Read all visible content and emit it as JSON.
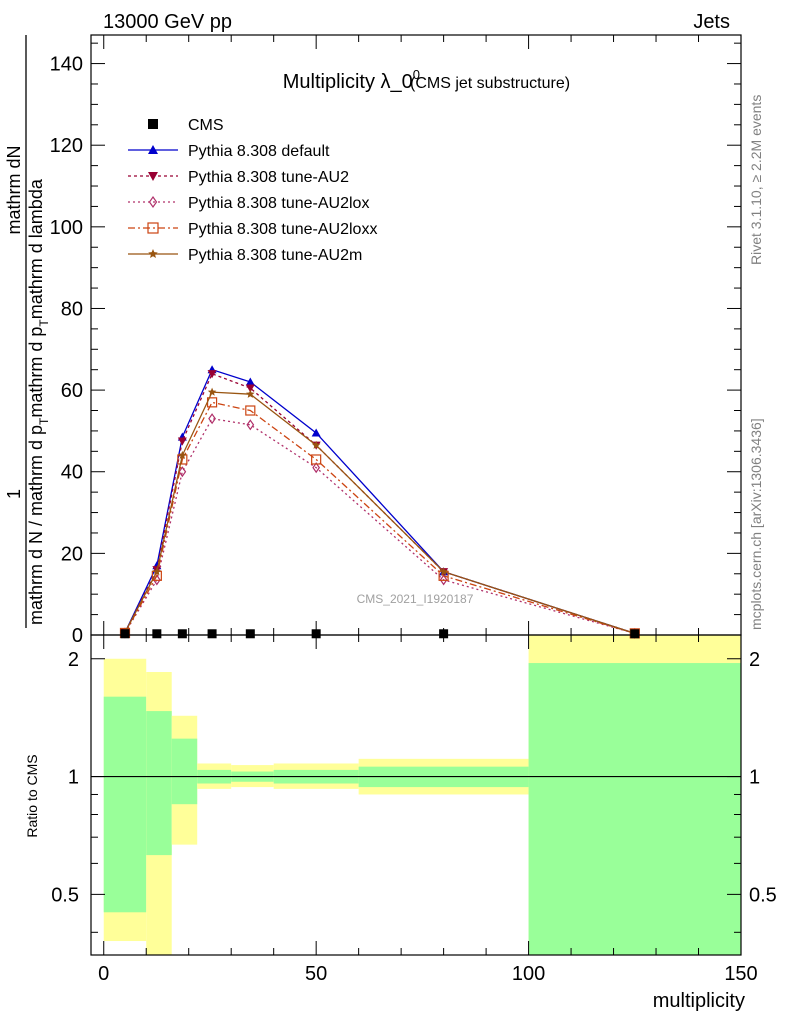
{
  "header": {
    "left": "13000 GeV pp",
    "right": "Jets"
  },
  "side_labels": {
    "rivet": "Rivet 3.1.10, ≥ 2.2M events",
    "mcplots": "mcplots.cern.ch [arXiv:1306.3436]"
  },
  "chart_data": {
    "type": "line",
    "title_main": "Multiplicity λ_0",
    "title_sup": "0",
    "title_paren": "(CMS jet substructure)",
    "watermark": "CMS_2021_I1920187",
    "ylabel_numerator": "mathrm dN",
    "ylabel_numerator_lead": "1",
    "ylabel_denominator": "mathrm d N / mathrm d p",
    "ylabel_denominator_sub": "T",
    "ylabel_denominator_tail": "mathrm d p",
    "ylabel_denominator_tail_sub": "T",
    "ylabel_denominator_end": "mathrm d lambda",
    "ratio_ylabel": "Ratio to CMS",
    "xlabel": "multiplicity",
    "xlim": [
      -3,
      150
    ],
    "ylim": [
      0,
      147
    ],
    "ratio_ylim": [
      0.35,
      2.3
    ],
    "x_ticks": [
      0,
      50,
      100,
      150
    ],
    "y_ticks": [
      0,
      20,
      40,
      60,
      80,
      100,
      120,
      140
    ],
    "ratio_ticks": [
      0.5,
      1,
      2
    ],
    "x": [
      5,
      12.5,
      18.5,
      25.5,
      34.5,
      50,
      80,
      125
    ],
    "cms_values": [
      0.3,
      0.3,
      0.3,
      0.3,
      0.3,
      0.3,
      0.3,
      0.3
    ],
    "series": [
      {
        "name": "CMS",
        "marker": "square",
        "color": "#000000",
        "dash": "none",
        "values": [
          0.3,
          0.3,
          0.3,
          0.3,
          0.3,
          0.3,
          0.3,
          0.3
        ]
      },
      {
        "name": "Pythia 8.308 default",
        "marker": "triangle-up",
        "color": "#0000cc",
        "dash": "none",
        "values": [
          0.6,
          17.0,
          48.5,
          65.0,
          62.0,
          49.5,
          15.5,
          0.4
        ]
      },
      {
        "name": "Pythia 8.308 tune-AU2",
        "marker": "triangle-down",
        "color": "#990033",
        "dash": "3,3",
        "values": [
          0.6,
          16.0,
          47.5,
          64.0,
          60.5,
          46.5,
          15.5,
          0.4
        ]
      },
      {
        "name": "Pythia 8.308 tune-AU2lox",
        "marker": "diamond-open",
        "color": "#b0306a",
        "dash": "2,3",
        "values": [
          0.5,
          13.5,
          40.0,
          53.0,
          51.5,
          41.0,
          13.5,
          0.4
        ]
      },
      {
        "name": "Pythia 8.308 tune-AU2loxx",
        "marker": "square-open",
        "color": "#cc4411",
        "dash": "7,3,2,3",
        "values": [
          0.5,
          14.5,
          43.0,
          57.0,
          55.0,
          43.0,
          14.5,
          0.4
        ]
      },
      {
        "name": "Pythia 8.308 tune-AU2m",
        "marker": "star",
        "color": "#995511",
        "dash": "none",
        "values": [
          0.6,
          15.5,
          44.0,
          59.5,
          59.0,
          46.5,
          15.5,
          0.4
        ]
      }
    ],
    "ratio_bands": [
      {
        "x0": 0,
        "x1": 10,
        "yellow": [
          0.38,
          2.0
        ],
        "green": [
          0.45,
          1.6
        ]
      },
      {
        "x0": 10,
        "x1": 16,
        "yellow": [
          0.35,
          1.85
        ],
        "green": [
          0.63,
          1.47
        ]
      },
      {
        "x0": 16,
        "x1": 22,
        "yellow": [
          0.67,
          1.43
        ],
        "green": [
          0.85,
          1.25
        ]
      },
      {
        "x0": 22,
        "x1": 30,
        "yellow": [
          0.93,
          1.08
        ],
        "green": [
          0.96,
          1.04
        ]
      },
      {
        "x0": 30,
        "x1": 40,
        "yellow": [
          0.94,
          1.07
        ],
        "green": [
          0.97,
          1.03
        ]
      },
      {
        "x0": 40,
        "x1": 60,
        "yellow": [
          0.93,
          1.08
        ],
        "green": [
          0.96,
          1.04
        ]
      },
      {
        "x0": 60,
        "x1": 100,
        "yellow": [
          0.9,
          1.11
        ],
        "green": [
          0.94,
          1.06
        ]
      },
      {
        "x0": 100,
        "x1": 150,
        "yellow": [
          0.35,
          2.3
        ],
        "green": [
          0.35,
          1.95
        ]
      }
    ]
  }
}
